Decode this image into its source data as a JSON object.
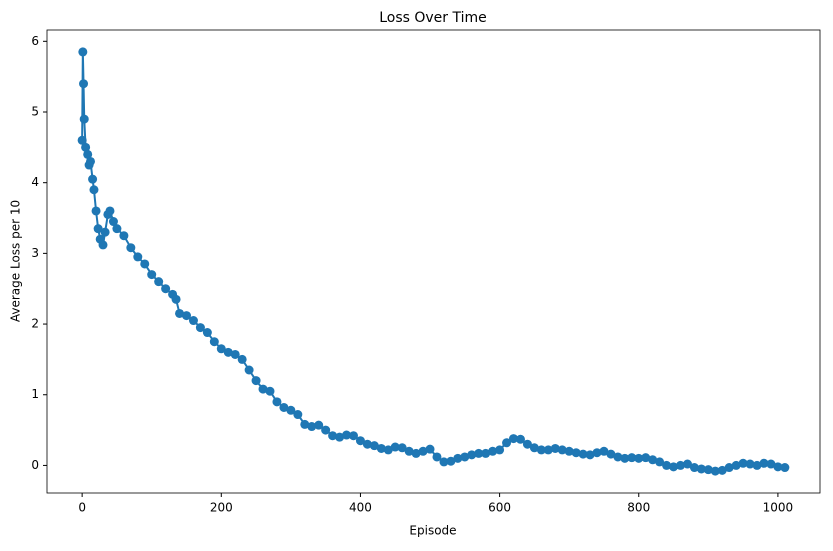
{
  "chart_data": {
    "type": "line",
    "title": "Loss Over Time",
    "x_label": "Episode",
    "y_label": "Average Loss per 10",
    "x": [
      0,
      1,
      2,
      3,
      5,
      8,
      10,
      12,
      15,
      17,
      20,
      23,
      26,
      30,
      33,
      37,
      40,
      45,
      50,
      60,
      70,
      80,
      90,
      100,
      110,
      120,
      130,
      135,
      140,
      150,
      160,
      170,
      180,
      190,
      200,
      210,
      220,
      230,
      240,
      250,
      260,
      270,
      280,
      290,
      300,
      310,
      320,
      330,
      340,
      350,
      360,
      370,
      380,
      390,
      400,
      410,
      420,
      430,
      440,
      450,
      460,
      470,
      480,
      490,
      500,
      510,
      520,
      530,
      540,
      550,
      560,
      570,
      580,
      590,
      600,
      610,
      620,
      630,
      640,
      650,
      660,
      670,
      680,
      690,
      700,
      710,
      720,
      730,
      740,
      750,
      760,
      770,
      780,
      790,
      800,
      810,
      820,
      830,
      840,
      850,
      860,
      870,
      880,
      890,
      900,
      910,
      920,
      930,
      940,
      950,
      960,
      970,
      980,
      990,
      1000,
      1010
    ],
    "series": [
      {
        "name": "Average Loss per 10",
        "color": "#1f77b4",
        "values": [
          4.6,
          5.85,
          5.4,
          4.9,
          4.5,
          4.4,
          4.25,
          4.3,
          4.05,
          3.9,
          3.6,
          3.35,
          3.2,
          3.12,
          3.3,
          3.55,
          3.6,
          3.45,
          3.35,
          3.25,
          3.08,
          2.95,
          2.85,
          2.7,
          2.6,
          2.5,
          2.42,
          2.35,
          2.15,
          2.12,
          2.05,
          1.95,
          1.88,
          1.75,
          1.65,
          1.6,
          1.57,
          1.5,
          1.35,
          1.2,
          1.08,
          1.05,
          0.9,
          0.82,
          0.78,
          0.72,
          0.58,
          0.55,
          0.57,
          0.5,
          0.42,
          0.4,
          0.43,
          0.42,
          0.35,
          0.3,
          0.28,
          0.24,
          0.22,
          0.26,
          0.25,
          0.2,
          0.17,
          0.2,
          0.23,
          0.12,
          0.05,
          0.06,
          0.1,
          0.12,
          0.15,
          0.17,
          0.17,
          0.2,
          0.22,
          0.32,
          0.38,
          0.37,
          0.3,
          0.25,
          0.22,
          0.22,
          0.24,
          0.22,
          0.2,
          0.18,
          0.16,
          0.15,
          0.18,
          0.2,
          0.16,
          0.12,
          0.1,
          0.11,
          0.1,
          0.11,
          0.08,
          0.05,
          0.0,
          -0.02,
          0.0,
          0.02,
          -0.03,
          -0.05,
          -0.06,
          -0.08,
          -0.07,
          -0.03,
          0.0,
          0.03,
          0.02,
          0.0,
          0.03,
          0.02,
          -0.02,
          -0.03
        ]
      }
    ],
    "xlim": [
      -50.5,
      1060.5
    ],
    "xticks": [
      0,
      200,
      400,
      600,
      800,
      1000
    ],
    "ylim": [
      -0.39,
      6.16
    ],
    "yticks": [
      0,
      1,
      2,
      3,
      4,
      5,
      6
    ]
  }
}
